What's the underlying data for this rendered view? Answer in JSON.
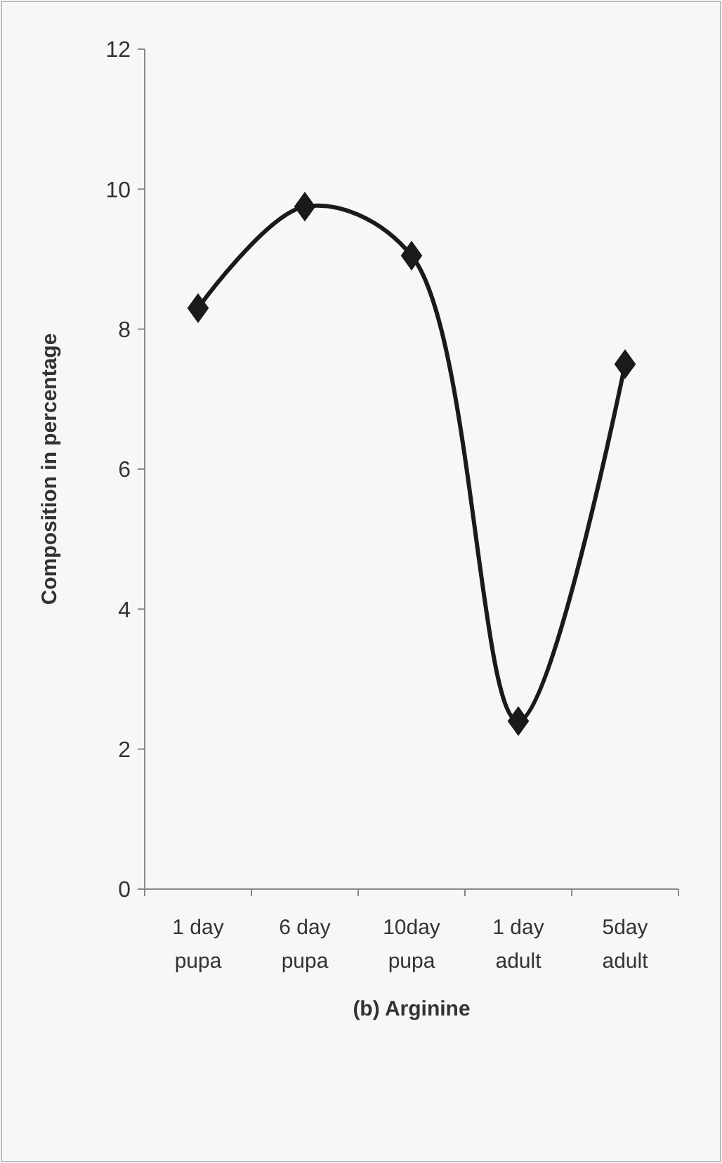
{
  "chart_data": {
    "type": "line",
    "title": "(b) Arginine",
    "ylabel": "Composition in percentage",
    "categories": [
      "1 day pupa",
      "6 day pupa",
      "10day pupa",
      "1 day adult",
      "5day adult"
    ],
    "series": [
      {
        "color": "#1a1a1a",
        "values": [
          8.3,
          9.75,
          9.05,
          2.4,
          7.5
        ]
      }
    ],
    "ylim": [
      0,
      12
    ],
    "yticks": [
      0,
      2,
      4,
      6,
      8,
      10,
      12
    ],
    "marker": "diamond",
    "line_style": "solid"
  }
}
